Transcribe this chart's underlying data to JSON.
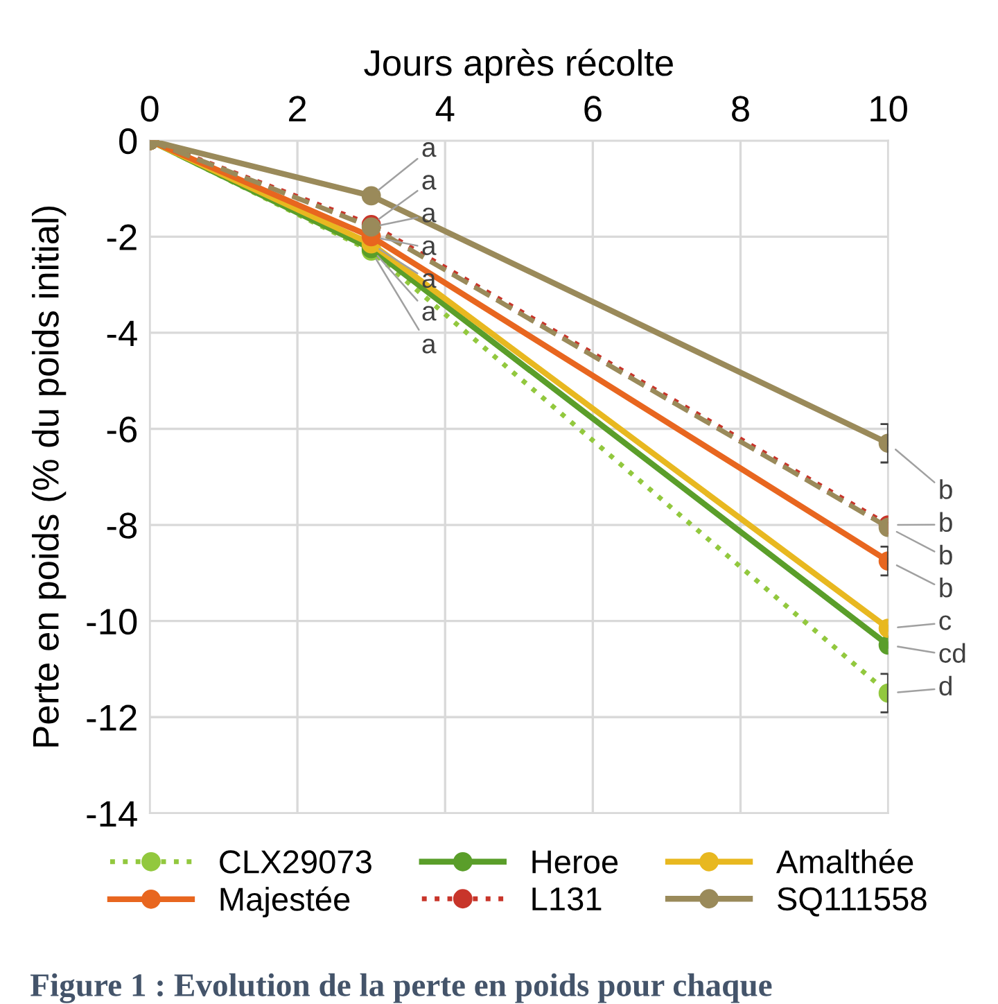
{
  "chart_data": {
    "type": "line",
    "xlabel": "Jours après récolte",
    "ylabel": "Perte en poids (% du poids initial)",
    "x": [
      0,
      3,
      10
    ],
    "xlim": [
      0,
      10
    ],
    "xticks": [
      0,
      2,
      4,
      6,
      8,
      10
    ],
    "ylim": [
      -14,
      0
    ],
    "yticks": [
      0,
      -2,
      -4,
      -6,
      -8,
      -10,
      -12,
      -14
    ],
    "grid": true,
    "legend": "bottom",
    "marker": "circle",
    "series": [
      {
        "name": "CLX29073",
        "color": "#92c83e",
        "line_style": "dotted",
        "values": [
          0,
          -2.3,
          -11.5
        ],
        "errors": [
          null,
          null,
          0.4
        ],
        "value_labels": [
          null,
          "a",
          "d"
        ]
      },
      {
        "name": "Heroe",
        "color": "#5a9e2a",
        "line_style": "solid",
        "values": [
          0,
          -2.25,
          -10.5
        ],
        "value_labels": [
          null,
          "a",
          "cd"
        ]
      },
      {
        "name": "Amalthée",
        "color": "#e8b820",
        "line_style": "solid",
        "values": [
          0,
          -2.15,
          -10.15
        ],
        "value_labels": [
          null,
          "a",
          "c"
        ]
      },
      {
        "name": "Majestée",
        "color": "#e8661f",
        "line_style": "solid",
        "values": [
          0,
          -2.0,
          -8.75
        ],
        "errors": [
          null,
          null,
          0.3
        ],
        "value_labels": [
          null,
          "a",
          "b"
        ]
      },
      {
        "name": "L131",
        "color": "#c8352a",
        "line_style": "dotted",
        "values": [
          0,
          -1.75,
          -8.0
        ],
        "value_labels": [
          null,
          "a",
          "b"
        ]
      },
      {
        "name": "SQ111558",
        "color": "#9a8a5a",
        "line_style": "solid",
        "values": [
          0,
          -1.15,
          -6.3
        ],
        "errors": [
          null,
          null,
          0.4
        ],
        "value_labels": [
          null,
          "a",
          "b"
        ]
      },
      {
        "color": "#9a8a5a",
        "line_style": "dashed",
        "values": [
          0,
          -1.8,
          -8.05
        ],
        "value_labels": [
          null,
          "a",
          "b"
        ]
      }
    ],
    "annotations": [
      "Figure 1 : Evolution de la perte en poids pour chaque"
    ]
  }
}
